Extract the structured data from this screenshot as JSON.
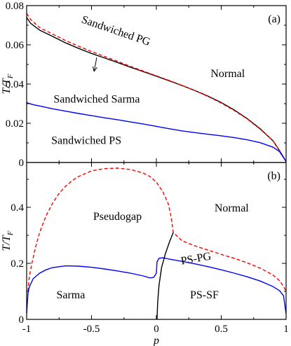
{
  "chart_data": [
    {
      "panel_label": "(a)",
      "type": "line",
      "ylabel": "T/T_F",
      "xlim": [
        -1,
        1
      ],
      "ylim": [
        0,
        0.08
      ],
      "yticks": [
        0,
        0.02,
        0.04,
        0.06,
        0.08
      ],
      "ytick_labels": [
        "0",
        "0.02",
        "0.04",
        "0.06",
        "0.08"
      ],
      "series": [
        {
          "color": "#000000",
          "dash": "solid",
          "x": [
            -1,
            -0.97,
            -0.9,
            -0.8,
            -0.7,
            -0.6,
            -0.5,
            -0.4,
            -0.3,
            -0.2,
            -0.1,
            0,
            0.1,
            0.2,
            0.3,
            0.4,
            0.5,
            0.6,
            0.7,
            0.8,
            0.9,
            0.95,
            1
          ],
          "y": [
            0.074,
            0.071,
            0.0675,
            0.0643,
            0.061,
            0.0582,
            0.0556,
            0.0533,
            0.051,
            0.0486,
            0.0463,
            0.044,
            0.0416,
            0.0392,
            0.0366,
            0.0338,
            0.0306,
            0.0268,
            0.0224,
            0.0172,
            0.011,
            0.006,
            0.0005
          ]
        },
        {
          "color": "#ff0000",
          "dash": "dashed",
          "x": [
            -1,
            -0.97,
            -0.9,
            -0.8,
            -0.7,
            -0.6,
            -0.5,
            -0.4,
            -0.3,
            -0.2,
            -0.1,
            0,
            0.1,
            0.2,
            0.3,
            0.4,
            0.5,
            0.6,
            0.7,
            0.8,
            0.9,
            0.95,
            1
          ],
          "y": [
            0.076,
            0.073,
            0.0688,
            0.0655,
            0.0622,
            0.0593,
            0.0566,
            0.0541,
            0.0516,
            0.049,
            0.0466,
            0.0442,
            0.0418,
            0.0393,
            0.0366,
            0.0336,
            0.0303,
            0.0265,
            0.0222,
            0.017,
            0.011,
            0.006,
            0.0005
          ]
        },
        {
          "color": "#0000ff",
          "dash": "solid",
          "x": [
            -1,
            -0.95,
            -0.9,
            -0.8,
            -0.7,
            -0.6,
            -0.5,
            -0.4,
            -0.3,
            -0.2,
            -0.1,
            0,
            0.1,
            0.2,
            0.3,
            0.4,
            0.5,
            0.6,
            0.7,
            0.8,
            0.9,
            0.95,
            1
          ],
          "y": [
            0.0305,
            0.0295,
            0.0288,
            0.0274,
            0.0262,
            0.025,
            0.0239,
            0.0228,
            0.0218,
            0.0207,
            0.0196,
            0.0184,
            0.0172,
            0.0161,
            0.0152,
            0.0144,
            0.0136,
            0.0127,
            0.0116,
            0.0101,
            0.0078,
            0.0055,
            0.0005
          ]
        }
      ],
      "annotations": [
        {
          "text": "Sandwiched PG",
          "x": -0.32,
          "y": 0.0655,
          "rotate": 19
        },
        {
          "text": "Normal",
          "x": 0.55,
          "y": 0.0435
        },
        {
          "text": "Sandwiched Sarma",
          "x": -0.46,
          "y": 0.0305
        },
        {
          "text": "Sandwiched PS",
          "x": -0.54,
          "y": 0.0095
        }
      ],
      "arrow": {
        "from": [
          -0.46,
          0.0535
        ],
        "to": [
          -0.48,
          0.0465
        ]
      }
    },
    {
      "panel_label": "(b)",
      "type": "line",
      "ylabel": "T/T_F",
      "xlabel": "p",
      "xlim": [
        -1,
        1
      ],
      "ylim": [
        0,
        0.56
      ],
      "xticks": [
        -1,
        -0.5,
        0,
        0.5,
        1
      ],
      "xtick_labels": [
        "-1",
        "-0.5",
        "0",
        "0.5",
        "1"
      ],
      "yticks": [
        0,
        0.2,
        0.4
      ],
      "ytick_labels": [
        "0",
        "0.2",
        "0.4"
      ],
      "series": [
        {
          "color": "#ff0000",
          "dash": "dashed",
          "x": [
            -0.99,
            -0.98,
            -0.96,
            -0.93,
            -0.9,
            -0.85,
            -0.8,
            -0.75,
            -0.7,
            -0.65,
            -0.6,
            -0.5,
            -0.4,
            -0.3,
            -0.2,
            -0.1,
            -0.05,
            0,
            0.05,
            0.09,
            0.11,
            0.12,
            0.13,
            0.2,
            0.3,
            0.4,
            0.5,
            0.6,
            0.7,
            0.8,
            0.9,
            0.95,
            0.98,
            1
          ],
          "y": [
            0.1,
            0.15,
            0.2,
            0.26,
            0.31,
            0.37,
            0.415,
            0.45,
            0.475,
            0.495,
            0.51,
            0.53,
            0.538,
            0.54,
            0.535,
            0.522,
            0.51,
            0.49,
            0.455,
            0.415,
            0.375,
            0.345,
            0.31,
            0.28,
            0.262,
            0.247,
            0.232,
            0.218,
            0.202,
            0.183,
            0.158,
            0.138,
            0.118,
            0.1
          ]
        },
        {
          "color": "#0000ff",
          "dash": "solid",
          "x": [
            -1,
            -0.99,
            -0.98,
            -0.95,
            -0.9,
            -0.85,
            -0.8,
            -0.7,
            -0.6,
            -0.5,
            -0.4,
            -0.3,
            -0.2,
            -0.1,
            -0.05,
            -0.02,
            0,
            0.005,
            0.02,
            0.05,
            0.1,
            0.2,
            0.3,
            0.4,
            0.5,
            0.6,
            0.7,
            0.8,
            0.9,
            0.95,
            0.98,
            1
          ],
          "y": [
            0.02,
            0.09,
            0.115,
            0.145,
            0.165,
            0.177,
            0.185,
            0.191,
            0.19,
            0.186,
            0.18,
            0.173,
            0.165,
            0.155,
            0.148,
            0.15,
            0.165,
            0.205,
            0.218,
            0.22,
            0.215,
            0.207,
            0.198,
            0.188,
            0.177,
            0.165,
            0.152,
            0.137,
            0.117,
            0.102,
            0.085,
            0.02
          ]
        },
        {
          "color": "#000000",
          "dash": "solid",
          "x": [
            0.13,
            0.1,
            0.07,
            0.04,
            0.02,
            0.01,
            0.005
          ],
          "y": [
            0.31,
            0.275,
            0.235,
            0.185,
            0.12,
            0.06,
            0
          ]
        }
      ],
      "annotations": [
        {
          "text": "Pseudogap",
          "x": -0.3,
          "y": 0.355
        },
        {
          "text": "Normal",
          "x": 0.58,
          "y": 0.385
        },
        {
          "text": "PS-PG",
          "x": 0.31,
          "y": 0.205,
          "rotate": -10
        },
        {
          "text": "Sarma",
          "x": -0.66,
          "y": 0.075
        },
        {
          "text": "PS-SF",
          "x": 0.37,
          "y": 0.075
        }
      ]
    }
  ]
}
